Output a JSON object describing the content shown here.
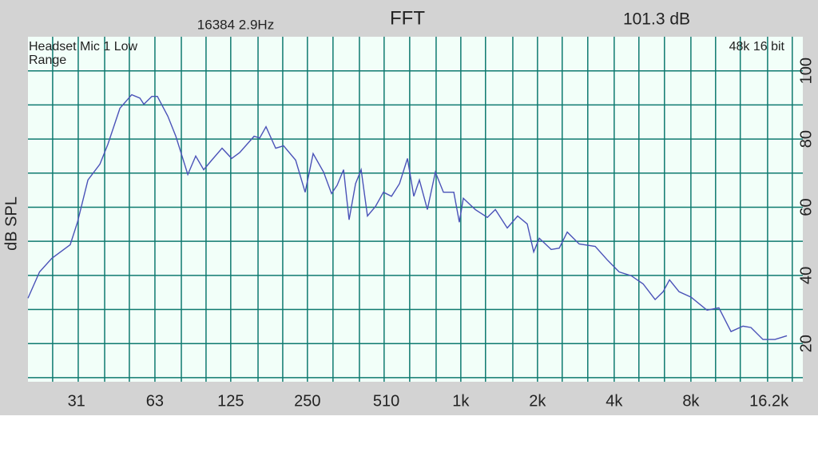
{
  "chart_data": {
    "type": "line",
    "title": "FFT",
    "fft_info": "16384  2.9Hz",
    "level": "101.3 dB",
    "level_color": "#4a8fdc",
    "input_label": "Headset Mic 1 Low Range",
    "format_label": "48k 16 bit",
    "y_label": "dB SPL",
    "x_scale": "log",
    "xlim": [
      20,
      22000
    ],
    "ylim": [
      8.8,
      110
    ],
    "xticks": [
      31,
      63,
      125,
      250,
      510,
      {
        "value": 1000,
        "label": "1k"
      },
      {
        "value": 2000,
        "label": "2k"
      },
      {
        "value": 4000,
        "label": "4k"
      },
      {
        "value": 8000,
        "label": "8k"
      },
      {
        "value": 16200,
        "label": "16.2k"
      }
    ],
    "yticks": [
      20,
      40,
      60,
      80,
      100
    ],
    "xgrid": [
      25,
      31.5,
      40,
      50,
      63,
      80,
      100,
      125,
      160,
      200,
      250,
      315,
      400,
      500,
      630,
      800,
      1000,
      1250,
      1600,
      2000,
      2500,
      3150,
      4000,
      5000,
      6300,
      8000,
      10000,
      12500,
      16000,
      20000
    ],
    "ygrid": [
      10,
      20,
      30,
      40,
      50,
      60,
      70,
      80,
      90,
      100
    ],
    "grid_color": "#0f7a70",
    "plot_color": "#f2fff9",
    "color": "#4a52b8",
    "x": [
      20,
      22.2,
      24.8,
      29.3,
      31.3,
      34.4,
      38.3,
      41.2,
      45.9,
      51.1,
      55,
      57,
      61.3,
      64.4,
      70.8,
      76.1,
      84.8,
      91.1,
      97.9,
      105.3,
      115.6,
      126.1,
      135.5,
      154.4,
      162.4,
      172,
      187.6,
      201.6,
      224.7,
      245,
      263.3,
      289.3,
      310.9,
      327,
      346.6,
      364.4,
      386.2,
      406.2,
      430.2,
      462.3,
      497,
      534.5,
      574.4,
      617.5,
      654,
      687.8,
      739.3,
      794.8,
      854.5,
      938.4,
      987,
      1023,
      1140,
      1271,
      1366,
      1522,
      1671,
      1823,
      1932,
      2032,
      2264,
      2434,
      2617,
      2914,
      3369,
      3753,
      4183,
      4664,
      5194,
      5790,
      6222,
      6594,
      7192,
      8012,
      9256,
      10300,
      11500,
      12810,
      13770,
      15340,
      17100,
      19060
    ],
    "values": [
      33.3,
      41,
      45,
      49,
      55.6,
      68,
      72.6,
      78.5,
      89,
      93,
      92,
      90.2,
      92.5,
      92.5,
      86.7,
      80.8,
      69.6,
      75,
      71,
      73.8,
      77.3,
      74.3,
      76,
      80.8,
      80.3,
      83.6,
      77.3,
      78,
      73.8,
      64.4,
      75.7,
      70.3,
      64,
      66.4,
      71,
      56.3,
      66.9,
      71,
      57.4,
      60.2,
      64.4,
      63.2,
      66.9,
      74.3,
      63.2,
      68,
      59.3,
      70.3,
      64.4,
      64.4,
      55.6,
      62.6,
      59.3,
      57,
      59.3,
      53.9,
      57.4,
      55.1,
      46.9,
      50.9,
      47.6,
      48,
      52.7,
      49.2,
      48.5,
      44.6,
      41,
      39.9,
      37.5,
      32.9,
      35.2,
      38.7,
      35.2,
      33.6,
      29.8,
      30.5,
      23.5,
      25.1,
      24.7,
      21.2,
      21.2,
      22.3
    ]
  }
}
